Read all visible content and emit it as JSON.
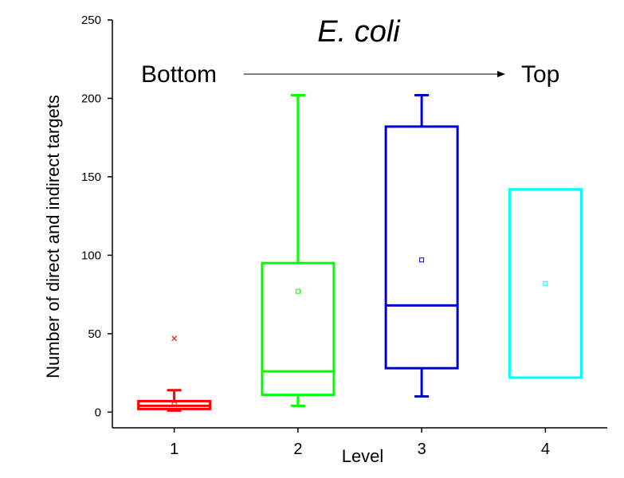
{
  "chart_data": {
    "type": "box",
    "title": "E. coli",
    "xlabel": "Level",
    "ylabel": "Number of direct and indirect targets",
    "ylim": [
      -10,
      250
    ],
    "yticks": [
      0,
      50,
      100,
      150,
      200,
      250
    ],
    "xlim": [
      0.5,
      4.5
    ],
    "categories": [
      "1",
      "2",
      "3",
      "4"
    ],
    "annotation": {
      "left": "Bottom",
      "right": "Top"
    },
    "boxes": [
      {
        "level": "1",
        "color": "#ff0000",
        "whisker_low": 1,
        "q1": 2,
        "median": 4,
        "q3": 7,
        "whisker_high": 14,
        "mean": 5,
        "outliers": [
          47
        ]
      },
      {
        "level": "2",
        "color": "#00ff00",
        "whisker_low": 4,
        "q1": 11,
        "median": 26,
        "q3": 95,
        "whisker_high": 202,
        "mean": 77,
        "outliers": []
      },
      {
        "level": "3",
        "color": "#0000cc",
        "whisker_low": 10,
        "q1": 28,
        "median": 68,
        "q3": 182,
        "whisker_high": 202,
        "mean": 97,
        "outliers": []
      },
      {
        "level": "4",
        "color": "#00ffff",
        "whisker_low": 22,
        "q1": 22,
        "median": 22,
        "q3": 142,
        "whisker_high": 142,
        "mean": 82,
        "outliers": []
      }
    ]
  }
}
